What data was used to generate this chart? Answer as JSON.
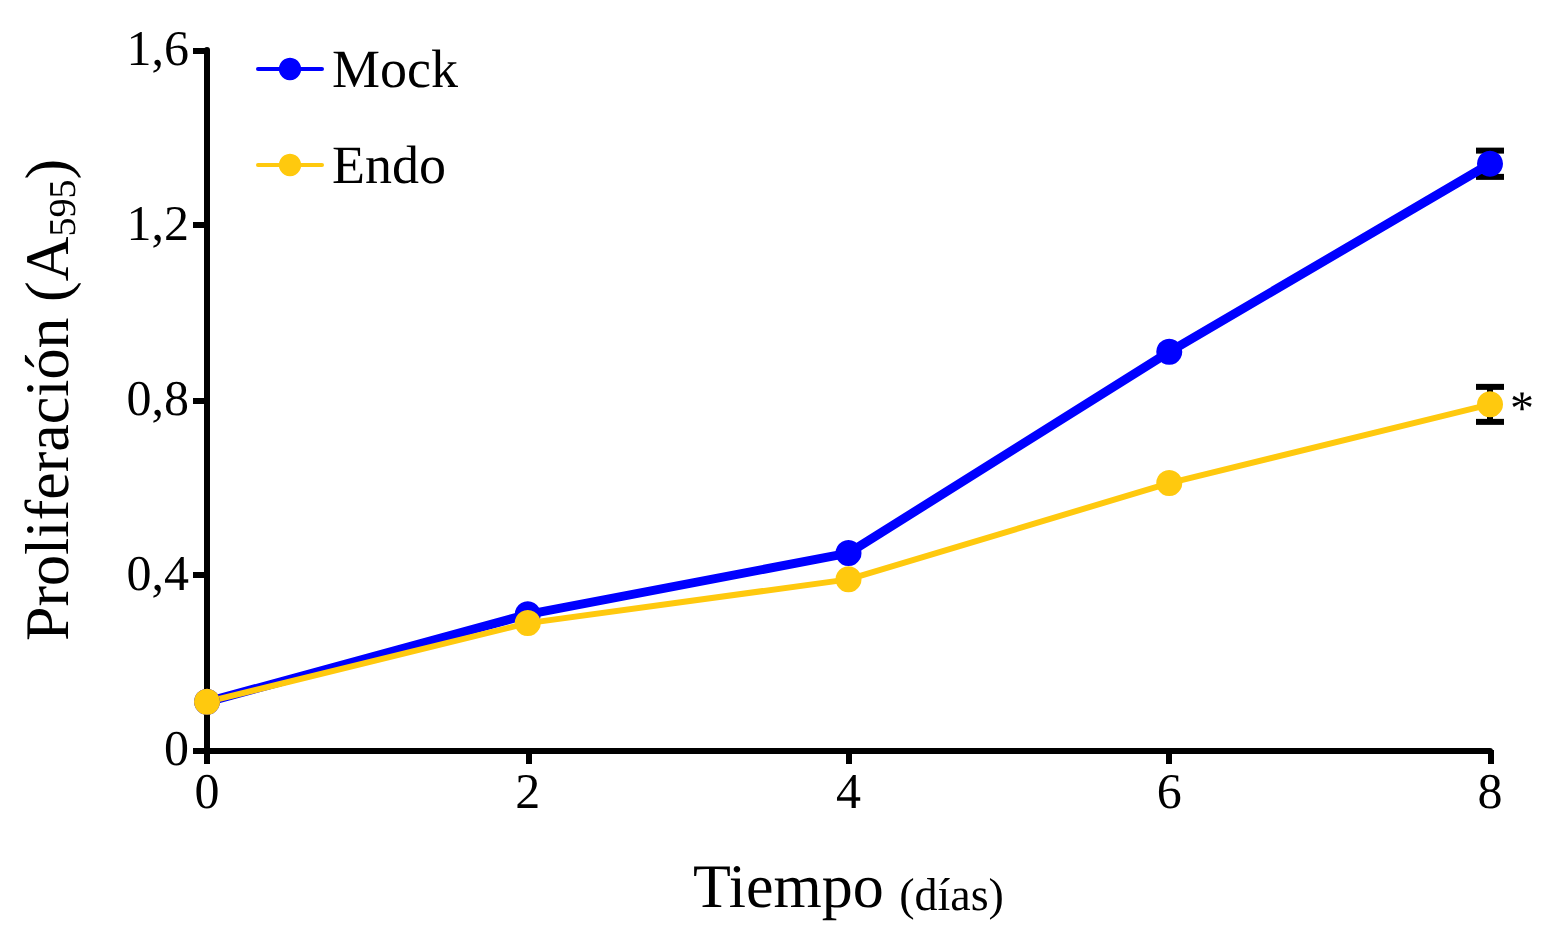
{
  "chart_data": {
    "type": "line",
    "xlabel": "Tiempo (días)",
    "ylabel": "Proliferación (A$_{595}$)",
    "x": [
      0,
      2,
      4,
      6,
      8
    ],
    "series": [
      {
        "name": "Mock",
        "color": "#0000ff",
        "values": [
          0.11,
          0.31,
          0.45,
          0.91,
          1.34
        ],
        "errors": [
          null,
          null,
          null,
          null,
          0.03
        ]
      },
      {
        "name": "Endo",
        "color": "#ffc90e",
        "values": [
          0.11,
          0.29,
          0.39,
          0.61,
          0.79
        ],
        "errors": [
          null,
          null,
          null,
          null,
          0.04
        ]
      }
    ],
    "xlim": [
      0,
      8
    ],
    "xticks": [
      0,
      2,
      4,
      6,
      8
    ],
    "ylim": [
      0,
      1.6
    ],
    "yticks": [
      0,
      {
        "value": 0.4,
        "label": "0,4"
      },
      {
        "value": 0.8,
        "label": "0,8"
      },
      {
        "value": 1.2,
        "label": "1,2"
      },
      {
        "value": 1.6,
        "label": "1,6"
      }
    ],
    "legend": "top left",
    "marker": "circle",
    "line_style": "solid",
    "grid": false,
    "annotations": [
      {
        "text": "*",
        "x": 8,
        "y": 0.79
      }
    ]
  }
}
